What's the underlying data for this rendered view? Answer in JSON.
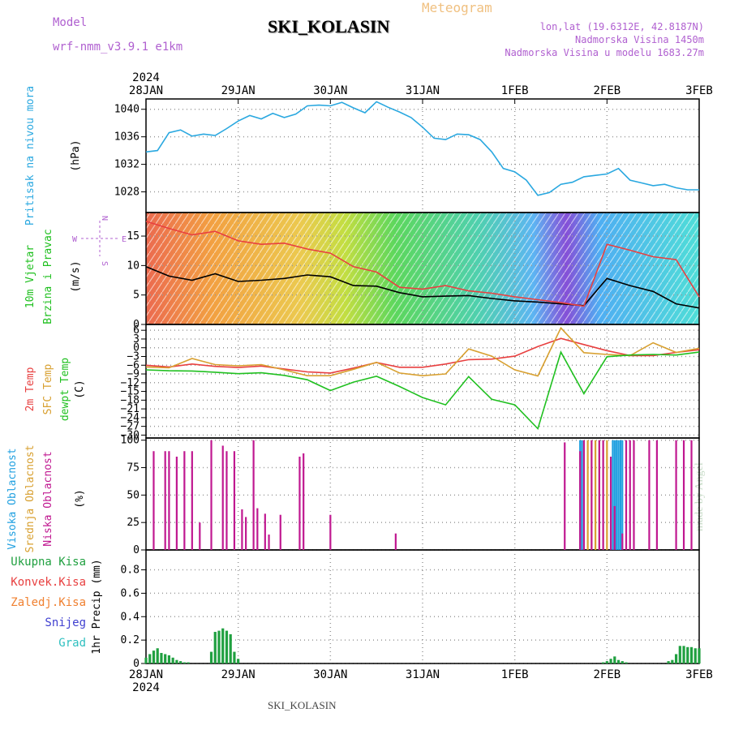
{
  "header": {
    "title": "SKI_KOLASIN",
    "meteogram": "Meteogram",
    "model_label": "Model",
    "model_name": "wrf-nmm_v3.9.1 e1km",
    "lonlat": "lon,lat (19.6312E, 42.8187N)",
    "elevation": "Nadmorska Visina 1450m",
    "elevation_model": "Nadmorska Visina u modelu 1683.27m"
  },
  "footer": {
    "station": "SKI_KOLASIN",
    "made_by": "made by Angel"
  },
  "colors": {
    "pressure": "#2aa8e0",
    "wind_speed": "#000000",
    "gust": "#e84040",
    "temp2m": "#e84040",
    "sfc_temp": "#d8a030",
    "dewpt": "#20c020",
    "high_cloud": "#20a0e0",
    "mid_cloud": "#d8a030",
    "low_cloud": "#c01890",
    "total_precip": "#20a040",
    "conv_precip": "#e84040",
    "frozen": "#f08030",
    "snow": "#4040d0",
    "hail": "#30c0c0"
  },
  "chart_data": {
    "type": "line",
    "time_axis": {
      "year": "2024",
      "top_labels": [
        "28JAN",
        "29JAN",
        "30JAN",
        "31JAN",
        "1FEB",
        "2FEB",
        "3FEB"
      ],
      "bottom_labels": [
        "28JAN",
        "29JAN",
        "30JAN",
        "31JAN",
        "1FEB",
        "2FEB",
        "3FEB"
      ],
      "range_hours": [
        0,
        144
      ]
    },
    "panels": [
      {
        "id": "pressure",
        "ylabel_lines": [
          "Pritisak na nivou mora"
        ],
        "unit": "(hPa)",
        "yticks": [
          1028,
          1032,
          1036,
          1040
        ],
        "ylim": [
          1025,
          1041.5
        ],
        "series": [
          {
            "name": "Pritisak na nivou mora",
            "color_key": "pressure",
            "x": [
              0,
              3,
              6,
              9,
              12,
              15,
              18,
              21,
              24,
              27,
              30,
              33,
              36,
              39,
              42,
              45,
              48,
              51,
              54,
              57,
              60,
              63,
              66,
              69,
              72,
              75,
              78,
              81,
              84,
              87,
              90,
              93,
              96,
              99,
              102,
              105,
              108,
              111,
              114,
              117,
              120,
              123,
              126,
              129,
              132,
              135,
              138,
              141,
              144
            ],
            "values": [
              1033.8,
              1034,
              1036.6,
              1037,
              1036.1,
              1036.4,
              1036.2,
              1037.2,
              1038.3,
              1039.1,
              1038.6,
              1039.4,
              1038.8,
              1039.3,
              1040.5,
              1040.6,
              1040.5,
              1041,
              1040.2,
              1039.5,
              1041.1,
              1040.3,
              1039.6,
              1038.8,
              1037.4,
              1035.8,
              1035.6,
              1036.4,
              1036.3,
              1035.6,
              1033.8,
              1031.4,
              1030.9,
              1029.7,
              1027.5,
              1027.9,
              1029.1,
              1029.4,
              1030.2,
              1030.4,
              1030.6,
              1031.4,
              1029.7,
              1029.3,
              1028.9,
              1029.1,
              1028.6,
              1028.3,
              1028.3
            ]
          }
        ]
      },
      {
        "id": "wind",
        "ylabel_lines": [
          "10m Vjetar",
          "Brzina i Pravac"
        ],
        "unit": "(m/s)",
        "compass": {
          "north": "N",
          "south": "S",
          "east": "E",
          "west": "W"
        },
        "yticks": [
          0,
          5,
          10,
          15
        ],
        "ylim": [
          0,
          19
        ],
        "series": [
          {
            "name": "Brzina",
            "color_key": "wind_speed",
            "x": [
              0,
              6,
              12,
              18,
              24,
              30,
              36,
              42,
              48,
              54,
              60,
              66,
              72,
              78,
              84,
              90,
              96,
              102,
              108,
              114,
              120,
              126,
              132,
              138,
              144
            ],
            "values": [
              9.8,
              8.2,
              7.5,
              8.6,
              7.3,
              7.5,
              7.8,
              8.4,
              8.1,
              6.6,
              6.5,
              5.4,
              4.7,
              4.8,
              4.9,
              4.4,
              4.0,
              3.8,
              3.5,
              3.2,
              7.8,
              6.6,
              5.6,
              3.5,
              2.8
            ]
          },
          {
            "name": "Udari",
            "color_key": "gust",
            "x": [
              0,
              6,
              12,
              18,
              24,
              30,
              36,
              42,
              48,
              54,
              60,
              66,
              72,
              78,
              84,
              90,
              96,
              102,
              108,
              114,
              120,
              126,
              132,
              138,
              144
            ],
            "values": [
              17.5,
              16.3,
              15.2,
              15.8,
              14.2,
              13.6,
              13.8,
              12.8,
              12.1,
              9.8,
              8.9,
              6.3,
              6.0,
              6.6,
              5.7,
              5.3,
              4.7,
              4.2,
              3.7,
              3.1,
              13.6,
              12.6,
              11.5,
              11.0,
              4.7
            ]
          }
        ]
      },
      {
        "id": "temperature",
        "ylabel_lines": [
          "2m Temp",
          "SFC Temp",
          "dewpt Temp"
        ],
        "unit": "(C)",
        "yticks": [
          6,
          3,
          0,
          -3,
          -6,
          -9,
          -12,
          -15,
          -18,
          -21,
          -24,
          -27,
          -30
        ],
        "ylim": [
          -31,
          8
        ],
        "series": [
          {
            "name": "2m Temp",
            "color_key": "temp2m",
            "x": [
              0,
              6,
              12,
              18,
              24,
              30,
              36,
              42,
              48,
              54,
              60,
              66,
              72,
              78,
              84,
              90,
              96,
              102,
              108,
              114,
              120,
              126,
              132,
              138,
              144
            ],
            "values": [
              -6.0,
              -6.6,
              -5.6,
              -6.4,
              -6.8,
              -6.3,
              -7.3,
              -8.3,
              -8.7,
              -7.0,
              -5.1,
              -6.7,
              -6.7,
              -5.6,
              -4.1,
              -3.9,
              -2.9,
              0.4,
              3.2,
              1.1,
              -1.0,
              -2.7,
              -2.7,
              -1.6,
              -0.7
            ]
          },
          {
            "name": "SFC Temp",
            "color_key": "sfc_temp",
            "x": [
              0,
              6,
              12,
              18,
              24,
              30,
              36,
              42,
              48,
              54,
              60,
              66,
              72,
              78,
              84,
              90,
              96,
              102,
              108,
              114,
              120,
              126,
              132,
              138,
              144
            ],
            "values": [
              -6.6,
              -6.9,
              -3.7,
              -5.8,
              -6.2,
              -5.8,
              -7.6,
              -9.6,
              -9.6,
              -7.4,
              -5.0,
              -8.7,
              -9.6,
              -9.0,
              -0.4,
              -2.9,
              -7.6,
              -9.7,
              6.8,
              -1.7,
              -2.3,
              -2.7,
              1.7,
              -1.6,
              -0.2
            ]
          },
          {
            "name": "dewpt Temp",
            "color_key": "dewpt",
            "x": [
              0,
              6,
              12,
              18,
              24,
              30,
              36,
              42,
              48,
              54,
              60,
              66,
              72,
              78,
              84,
              90,
              96,
              102,
              108,
              114,
              120,
              126,
              132,
              138,
              144
            ],
            "values": [
              -7.6,
              -7.9,
              -8.0,
              -8.4,
              -8.9,
              -8.6,
              -9.5,
              -11.0,
              -14.7,
              -11.8,
              -9.8,
              -13.3,
              -17.1,
              -19.6,
              -9.9,
              -17.7,
              -19.6,
              -27.8,
              -1.5,
              -15.8,
              -3.1,
              -2.5,
              -2.3,
              -2.5,
              -1.5
            ]
          }
        ]
      },
      {
        "id": "cloud",
        "ylabel_lines": [
          "Visoka Oblacnost",
          "Srednja Oblacnost",
          "Niska Oblacnost"
        ],
        "unit": "(%)",
        "yticks": [
          0,
          25,
          50,
          75,
          100
        ],
        "ylim": [
          0,
          102
        ],
        "series": [
          {
            "name": "Visoka Oblacnost",
            "color_key": "high_cloud",
            "x": [
              113,
              113.5,
              121.5,
              122,
              122.5,
              123,
              123.5,
              124
            ],
            "values": [
              100,
              100,
              100,
              100,
              100,
              100,
              100,
              100
            ]
          },
          {
            "name": "Srednja Oblacnost",
            "color_key": "mid_cloud",
            "x": [
              115,
              116,
              117,
              118,
              119,
              120
            ],
            "values": [
              100,
              100,
              100,
              100,
              100,
              100
            ]
          },
          {
            "name": "Niska Oblacnost",
            "color_key": "low_cloud",
            "x": [
              2,
              5,
              6,
              8,
              10,
              12,
              14,
              17,
              20,
              21,
              23,
              25,
              26,
              28,
              29,
              31,
              32,
              35,
              40,
              41,
              48,
              65,
              109,
              113,
              114,
              116,
              118,
              119,
              121,
              122,
              124,
              125,
              126,
              127,
              131,
              133,
              138,
              140,
              142
            ],
            "values": [
              90,
              90,
              90,
              85,
              90,
              90,
              25,
              100,
              95,
              90,
              90,
              37,
              30,
              100,
              38,
              33,
              14,
              32,
              85,
              88,
              32,
              15,
              98,
              90,
              100,
              100,
              100,
              100,
              85,
              40,
              15,
              100,
              100,
              100,
              100,
              100,
              100,
              100,
              100
            ]
          }
        ]
      },
      {
        "id": "precip",
        "ylabel_lines": [
          "Ukupna Kisa",
          "Konvek.Kisa",
          "Zaledj.Kisa",
          "Snijeg",
          "Grad"
        ],
        "unit": "1hr Precip (mm)",
        "yticks": [
          0,
          0.2,
          0.4,
          0.6,
          0.8
        ],
        "ylim": [
          0,
          0.97
        ],
        "series": [
          {
            "name": "Ukupna Kisa",
            "color_key": "total_precip",
            "x": [
              0,
              1,
              2,
              3,
              4,
              5,
              6,
              7,
              8,
              9,
              10,
              11,
              17,
              18,
              19,
              20,
              21,
              22,
              23,
              24,
              119,
              120,
              121,
              122,
              123,
              124,
              125,
              136,
              137,
              138,
              139,
              140,
              141,
              142,
              143,
              144
            ],
            "values": [
              0.05,
              0.08,
              0.11,
              0.13,
              0.09,
              0.08,
              0.07,
              0.05,
              0.03,
              0.02,
              0.01,
              0.01,
              0.1,
              0.27,
              0.28,
              0.3,
              0.28,
              0.25,
              0.1,
              0.04,
              0.01,
              0.02,
              0.04,
              0.06,
              0.03,
              0.02,
              0.01,
              0.02,
              0.03,
              0.08,
              0.15,
              0.15,
              0.14,
              0.14,
              0.13,
              0.13
            ]
          },
          {
            "name": "Konvek.Kisa",
            "color_key": "conv_precip",
            "x": [],
            "values": []
          },
          {
            "name": "Zaledj.Kisa",
            "color_key": "frozen",
            "x": [],
            "values": []
          },
          {
            "name": "Snijeg",
            "color_key": "snow",
            "x": [],
            "values": []
          },
          {
            "name": "Grad",
            "color_key": "hail",
            "x": [],
            "values": []
          }
        ]
      }
    ]
  }
}
